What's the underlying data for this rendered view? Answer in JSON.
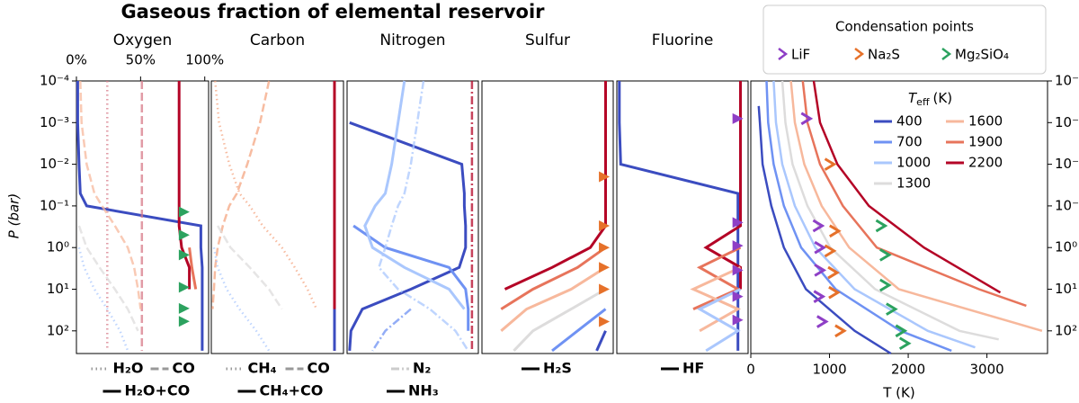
{
  "title": "Gaseous fraction of elemental reservoir",
  "chart_data": [
    {
      "type": "line",
      "title": "Oxygen",
      "ylabel": "P (bar)",
      "y_scale": "log",
      "xlim": [
        0,
        103
      ],
      "ylim": [
        0.0001,
        350
      ],
      "xticks": [
        {
          "value": 0,
          "label": "0%"
        },
        {
          "value": 50,
          "label": "50%"
        },
        {
          "value": 100,
          "label": "100%"
        }
      ],
      "yticks": [
        {
          "value": 0.0001,
          "label": "10⁻⁴"
        },
        {
          "value": 0.001,
          "label": "10⁻³"
        },
        {
          "value": 0.01,
          "label": "10⁻²"
        },
        {
          "value": 0.1,
          "label": "10⁻¹"
        },
        {
          "value": 1,
          "label": "10⁰"
        },
        {
          "value": 10,
          "label": "10¹"
        },
        {
          "value": 100,
          "label": "10²"
        }
      ],
      "pressure": [
        0.0001,
        0.001,
        0.01,
        0.05,
        0.1,
        0.3,
        1,
        3,
        10,
        30,
        100,
        300
      ],
      "series": [
        {
          "color": "#3b4cc0",
          "style": "solid",
          "values": [
            1,
            1,
            2,
            3,
            8,
            97,
            97,
            98,
            98,
            98,
            98,
            98
          ]
        },
        {
          "color": "#b40426",
          "style": "solid",
          "values": [
            80,
            80,
            80,
            80,
            80,
            80,
            82,
            88,
            88,
            null,
            null,
            null
          ]
        },
        {
          "color": "#e7745b",
          "style": "solid",
          "values": [
            null,
            null,
            null,
            null,
            null,
            null,
            88,
            90,
            93,
            null,
            null,
            null
          ]
        },
        {
          "color": "#d77a88",
          "style": "dotted",
          "values": [
            24,
            24,
            24,
            24,
            24,
            24,
            24,
            24,
            24,
            24,
            24,
            24
          ]
        },
        {
          "color": "#d77a88",
          "style": "dashed",
          "values": [
            51,
            51,
            51,
            51,
            51,
            51,
            51,
            51,
            51,
            51,
            51,
            51
          ]
        },
        {
          "color": "#f7b89c",
          "style": "dashed",
          "values": [
            3,
            4,
            8,
            14,
            20,
            30,
            40,
            45,
            48,
            50,
            null,
            null
          ]
        },
        {
          "color": "#aac7fd",
          "style": "dotted",
          "values": [
            null,
            null,
            null,
            null,
            null,
            null,
            2,
            6,
            14,
            24,
            34,
            40
          ]
        },
        {
          "color": "#dddcdc",
          "style": "dashed",
          "values": [
            null,
            null,
            null,
            null,
            null,
            2,
            8,
            18,
            30,
            40,
            48,
            null
          ]
        }
      ],
      "markers": [
        {
          "color": "#2ca25f",
          "x": [
            84,
            84,
            84,
            84,
            84,
            84
          ],
          "P": [
            0.14,
            0.5,
            1.5,
            9,
            29,
            59
          ]
        }
      ],
      "legend": [
        [
          {
            "text": "H₂O",
            "style": "dotted",
            "color": "#999999"
          },
          {
            "text": "CO",
            "style": "dashed",
            "color": "#999999"
          }
        ],
        [
          {
            "text": "H₂O+CO",
            "style": "solid",
            "color": "#000000"
          }
        ]
      ]
    },
    {
      "type": "line",
      "title": "Carbon",
      "y_scale": "log",
      "xlim": [
        0,
        103
      ],
      "ylim": [
        0.0001,
        350
      ],
      "pressure": [
        0.0001,
        0.001,
        0.01,
        0.05,
        0.1,
        0.3,
        1,
        3,
        10,
        30,
        100,
        300
      ],
      "series": [
        {
          "color": "#b40426",
          "style": "solid",
          "values": [
            96,
            96,
            96,
            96,
            96,
            96,
            96,
            96,
            96,
            96,
            96,
            96
          ]
        },
        {
          "color": "#3b4cc0",
          "style": "solid",
          "values": [
            null,
            null,
            null,
            null,
            null,
            null,
            null,
            null,
            null,
            96,
            96,
            96
          ]
        },
        {
          "color": "#f4a582",
          "style": "dashed",
          "values": [
            45,
            38,
            28,
            20,
            14,
            9,
            5,
            3,
            2,
            1,
            null,
            null
          ]
        },
        {
          "color": "#f4a582",
          "style": "dotted",
          "values": [
            3,
            6,
            14,
            22,
            30,
            40,
            55,
            65,
            75,
            82,
            null,
            null
          ]
        },
        {
          "color": "#aac7fd",
          "style": "dotted",
          "values": [
            null,
            null,
            null,
            null,
            null,
            null,
            2,
            5,
            12,
            22,
            35,
            45
          ]
        },
        {
          "color": "#dddcdc",
          "style": "dashed",
          "values": [
            null,
            null,
            null,
            null,
            null,
            5,
            15,
            30,
            45,
            55,
            null,
            null
          ]
        }
      ],
      "legend": [
        [
          {
            "text": "CH₄",
            "style": "dotted",
            "color": "#999999"
          },
          {
            "text": "CO",
            "style": "dashed",
            "color": "#999999"
          }
        ],
        [
          {
            "text": "CH₄+CO",
            "style": "solid",
            "color": "#000000"
          }
        ]
      ]
    },
    {
      "type": "line",
      "title": "Nitrogen",
      "y_scale": "log",
      "xlim": [
        0,
        103
      ],
      "ylim": [
        0.0001,
        350
      ],
      "pressure": [
        0.0001,
        0.001,
        0.01,
        0.05,
        0.1,
        0.3,
        1,
        3,
        10,
        30,
        100,
        300
      ],
      "series": [
        {
          "color": "#3b4cc0",
          "style": "solid",
          "values": [
            null,
            2,
            90,
            92,
            92,
            93,
            93,
            88,
            50,
            12,
            3,
            2
          ]
        },
        {
          "color": "#6f92f3",
          "style": "solid",
          "values": [
            null,
            null,
            null,
            null,
            null,
            5,
            30,
            80,
            93,
            95,
            95,
            null
          ]
        },
        {
          "color": "#aac7fd",
          "style": "solid",
          "values": [
            45,
            40,
            35,
            30,
            22,
            14,
            20,
            45,
            80,
            92,
            null,
            null
          ]
        },
        {
          "color": "#b40426",
          "style": "dashdot",
          "values": [
            98,
            98,
            98,
            98,
            98,
            98,
            98,
            98,
            98,
            98,
            98,
            98
          ]
        },
        {
          "color": "#aac7fd",
          "style": "dashdot",
          "values": [
            60,
            55,
            50,
            45,
            40,
            35,
            30,
            25,
            40,
            65,
            85,
            95
          ]
        },
        {
          "color": "#6f92f3",
          "style": "dashdot",
          "values": [
            null,
            null,
            null,
            null,
            null,
            null,
            null,
            null,
            null,
            50,
            30,
            20
          ]
        }
      ],
      "legend": [
        [
          {
            "text": "N₂",
            "style": "dashdot",
            "color": "#cccccc"
          }
        ],
        [
          {
            "text": "NH₃",
            "style": "solid",
            "color": "#000000"
          }
        ]
      ]
    },
    {
      "type": "line",
      "title": "Sulfur",
      "y_scale": "log",
      "xlim": [
        0,
        103
      ],
      "ylim": [
        0.0001,
        350
      ],
      "pressure": [
        0.0001,
        0.001,
        0.01,
        0.05,
        0.1,
        0.3,
        1,
        3,
        10,
        30,
        100,
        300
      ],
      "series": [
        {
          "color": "#b40426",
          "style": "solid",
          "values": [
            97,
            97,
            97,
            97,
            97,
            97,
            85,
            55,
            18,
            null,
            null,
            null
          ]
        },
        {
          "color": "#e7745b",
          "style": "solid",
          "values": [
            null,
            null,
            null,
            null,
            null,
            null,
            97,
            75,
            40,
            15,
            null,
            null
          ]
        },
        {
          "color": "#f7b89c",
          "style": "solid",
          "values": [
            null,
            null,
            null,
            null,
            null,
            null,
            null,
            97,
            70,
            35,
            15,
            null
          ]
        },
        {
          "color": "#dddcdc",
          "style": "solid",
          "values": [
            null,
            null,
            null,
            null,
            null,
            null,
            null,
            null,
            97,
            70,
            40,
            25
          ]
        },
        {
          "color": "#6f92f3",
          "style": "solid",
          "values": [
            null,
            null,
            null,
            null,
            null,
            null,
            null,
            null,
            null,
            97,
            75,
            55
          ]
        },
        {
          "color": "#3b4cc0",
          "style": "solid",
          "values": [
            null,
            null,
            null,
            null,
            null,
            null,
            null,
            null,
            null,
            null,
            97,
            90
          ]
        }
      ],
      "markers": [
        {
          "color": "#e6712a",
          "x": [
            96,
            96,
            96,
            96,
            96,
            96
          ],
          "P": [
            0.02,
            0.3,
            1,
            3,
            10,
            60
          ]
        }
      ],
      "legend": [
        [
          {
            "text": "H₂S",
            "style": "solid",
            "color": "#000000"
          }
        ]
      ]
    },
    {
      "type": "line",
      "title": "Fluorine",
      "y_scale": "log",
      "xlim": [
        0,
        103
      ],
      "ylim": [
        0.0001,
        350
      ],
      "pressure": [
        0.0001,
        0.001,
        0.01,
        0.05,
        0.1,
        0.3,
        1,
        3,
        10,
        30,
        100,
        300
      ],
      "series": [
        {
          "color": "#3b4cc0",
          "style": "solid",
          "values": [
            2,
            2,
            3,
            95,
            95,
            95,
            95,
            95,
            95,
            95,
            95,
            95
          ]
        },
        {
          "color": "#b40426",
          "style": "solid",
          "values": [
            97,
            97,
            97,
            97,
            97,
            97,
            70,
            97,
            97,
            null,
            null,
            null
          ]
        },
        {
          "color": "#e7745b",
          "style": "solid",
          "values": [
            null,
            null,
            null,
            null,
            null,
            null,
            97,
            65,
            95,
            60,
            null,
            null
          ]
        },
        {
          "color": "#f7b89c",
          "style": "solid",
          "values": [
            null,
            null,
            null,
            null,
            null,
            null,
            null,
            97,
            60,
            95,
            65,
            null
          ]
        },
        {
          "color": "#aac7fd",
          "style": "solid",
          "values": [
            null,
            null,
            null,
            null,
            null,
            null,
            null,
            null,
            97,
            65,
            95,
            70
          ]
        }
      ],
      "markers": [
        {
          "color": "#8e3fc6",
          "x": [
            95,
            95,
            95,
            95,
            95,
            95
          ],
          "P": [
            0.0008,
            0.25,
            0.9,
            3.5,
            15,
            55
          ]
        }
      ],
      "legend": [
        [
          {
            "text": "HF",
            "style": "solid",
            "color": "#000000"
          }
        ]
      ]
    },
    {
      "type": "profile",
      "xlabel": "T (K)",
      "y_scale": "log",
      "xlim": [
        0,
        3770
      ],
      "ylim": [
        0.0001,
        350
      ],
      "xticks": [
        0,
        1000,
        2000,
        3000
      ],
      "yticks": [
        {
          "value": 0.0001,
          "label": "10⁻⁴"
        },
        {
          "value": 0.001,
          "label": "10⁻³"
        },
        {
          "value": 0.01,
          "label": "10⁻²"
        },
        {
          "value": 0.1,
          "label": "10⁻¹"
        },
        {
          "value": 1,
          "label": "10⁰"
        },
        {
          "value": 10,
          "label": "10¹"
        },
        {
          "value": 100,
          "label": "10²"
        }
      ],
      "legend_title": "T",
      "legend_title_sub": "eff",
      "legend_title_unit": "(K)",
      "series": [
        {
          "name": "400",
          "color": "#3b4cc0",
          "T": [
            100,
            115,
            150,
            260,
            420,
            700,
            1320,
            1780
          ],
          "P": [
            0.0004,
            0.001,
            0.01,
            0.1,
            1,
            10,
            100,
            350
          ]
        },
        {
          "name": "700",
          "color": "#6f92f3",
          "T": [
            200,
            220,
            290,
            420,
            640,
            1080,
            1900,
            2550
          ],
          "P": [
            0.0001,
            0.001,
            0.01,
            0.1,
            1,
            10,
            100,
            300
          ]
        },
        {
          "name": "1000",
          "color": "#aac7fd",
          "T": [
            290,
            320,
            400,
            560,
            820,
            1320,
            2250,
            2850
          ],
          "P": [
            0.0001,
            0.001,
            0.01,
            0.1,
            1,
            10,
            100,
            250
          ]
        },
        {
          "name": "1300",
          "color": "#dddcdc",
          "T": [
            400,
            440,
            530,
            720,
            1010,
            1580,
            2650,
            3150
          ],
          "P": [
            0.0001,
            0.001,
            0.01,
            0.1,
            1,
            10,
            100,
            160
          ]
        },
        {
          "name": "1600",
          "color": "#f7b89c",
          "T": [
            510,
            560,
            680,
            900,
            1250,
            1880,
            3700
          ],
          "P": [
            0.0001,
            0.001,
            0.01,
            0.1,
            1,
            10,
            100
          ]
        },
        {
          "name": "1900",
          "color": "#e7745b",
          "T": [
            660,
            720,
            880,
            1170,
            1600,
            2900,
            3500
          ],
          "P": [
            0.0001,
            0.001,
            0.01,
            0.1,
            1,
            10,
            25
          ]
        },
        {
          "name": "2200",
          "color": "#b40426",
          "T": [
            800,
            880,
            1100,
            1500,
            2200,
            3170
          ],
          "P": [
            0.0001,
            0.001,
            0.01,
            0.1,
            1,
            12
          ]
        }
      ],
      "condensation": {
        "title": "Condensation points",
        "species": [
          {
            "name": "LiF",
            "color": "#8e3fc6",
            "T": [
              700,
              850,
              870,
              870,
              860,
              900
            ],
            "P": [
              0.0008,
              0.3,
              1,
              3.5,
              15,
              60
            ]
          },
          {
            "name": "Na₂S",
            "color": "#e6712a",
            "T": [
              1000,
              1060,
              1000,
              1040,
              1050,
              1130
            ],
            "P": [
              0.01,
              0.4,
              1.2,
              4,
              12,
              100
            ]
          },
          {
            "name": "Mg₂SiO₄",
            "color": "#2ca25f",
            "T": [
              1650,
              1700,
              1700,
              1780,
              1900,
              1950
            ],
            "P": [
              0.3,
              1.5,
              8,
              30,
              100,
              200
            ]
          }
        ]
      }
    }
  ]
}
